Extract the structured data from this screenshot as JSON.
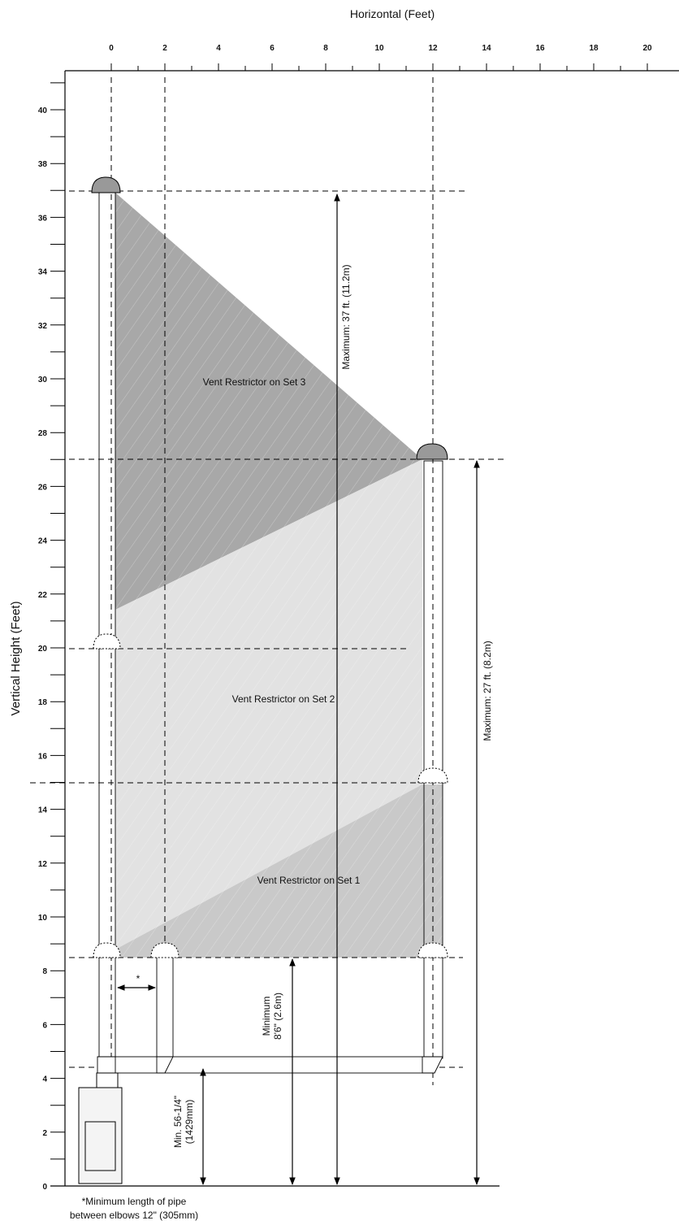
{
  "x_axis": {
    "title": "Horizontal (Feet)",
    "ticks": [
      0,
      2,
      4,
      6,
      8,
      10,
      12,
      14,
      16,
      18,
      20
    ]
  },
  "y_axis": {
    "title": "Vertical Height (Feet)",
    "ticks": [
      0,
      2,
      4,
      6,
      8,
      10,
      12,
      14,
      16,
      18,
      20,
      22,
      24,
      26,
      28,
      30,
      32,
      34,
      36,
      38,
      40
    ]
  },
  "regions": [
    {
      "label": "Vent Restrictor on Set 3"
    },
    {
      "label": "Vent Restrictor on Set 2"
    },
    {
      "label": "Vent Restrictor on Set 1"
    }
  ],
  "dimensions": [
    {
      "label": "Maximum: 37 ft. (11.2m)"
    },
    {
      "label": "Maximum: 27 ft. (8.2m)"
    },
    {
      "lines": [
        "Minimum",
        "8'6\" (2.6m)"
      ]
    },
    {
      "lines": [
        "Min. 56-1/4\"",
        "(1429mm)"
      ]
    }
  ],
  "asterisk": "*",
  "footnote": [
    "*Minimum length of pipe",
    "between elbows 12\" (305mm)"
  ]
}
